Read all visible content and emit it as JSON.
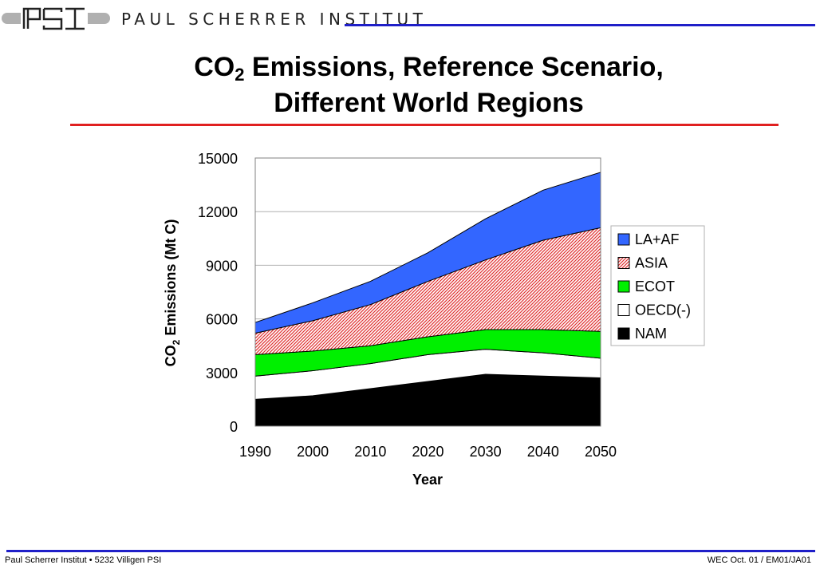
{
  "header": {
    "logo_text": "PSI",
    "institute": "PAUL SCHERRER INSTITUT"
  },
  "title": {
    "line1_prefix": "CO",
    "line1_sub": "2",
    "line1_rest": " Emissions, Reference Scenario,",
    "line2": "Different World Regions"
  },
  "footer": {
    "left": "Paul Scherrer Institut • 5232 Villigen PSI",
    "right": "WEC Oct. 01 / EM01/JA01"
  },
  "colors": {
    "brand_blue": "#1f1fc8",
    "title_rule_red": "#e02020"
  },
  "chart_data": {
    "type": "area",
    "stacked": true,
    "x": [
      1990,
      2000,
      2010,
      2020,
      2030,
      2040,
      2050
    ],
    "xlabel": "Year",
    "ylabel_prefix": "CO",
    "ylabel_sub": "2",
    "ylabel_rest": " Emissions (Mt C)",
    "ylim": [
      0,
      15000
    ],
    "yticks": [
      0,
      3000,
      6000,
      9000,
      12000,
      15000
    ],
    "grid": "horizontal",
    "legend_position": "right",
    "series": [
      {
        "name": "NAM",
        "values": [
          1500,
          1700,
          2100,
          2500,
          2900,
          2800,
          2700
        ],
        "color": "#000000",
        "pattern": "solid"
      },
      {
        "name": "OECD(-)",
        "values": [
          1300,
          1400,
          1400,
          1500,
          1400,
          1300,
          1100
        ],
        "color": "#ffffff",
        "pattern": "solid"
      },
      {
        "name": "ECOT",
        "values": [
          1200,
          1100,
          1000,
          1000,
          1100,
          1300,
          1500
        ],
        "color": "#00f000",
        "pattern": "solid"
      },
      {
        "name": "ASIA",
        "values": [
          1200,
          1700,
          2300,
          3100,
          3900,
          5000,
          5800
        ],
        "color": "#e03030",
        "pattern": "hatch"
      },
      {
        "name": "LA+AF",
        "values": [
          600,
          1000,
          1300,
          1600,
          2300,
          2800,
          3100
        ],
        "color": "#3366ff",
        "pattern": "solid"
      }
    ],
    "legend_order": [
      "LA+AF",
      "ASIA",
      "ECOT",
      "OECD(-)",
      "NAM"
    ]
  }
}
